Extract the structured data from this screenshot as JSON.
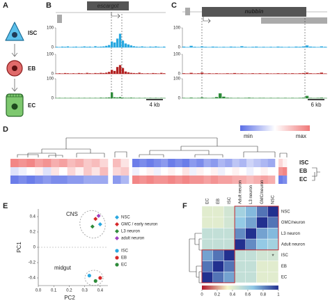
{
  "panel_labels": [
    "A",
    "B",
    "C",
    "D",
    "E",
    "F"
  ],
  "cells": [
    {
      "label": "ISC",
      "color": "#29a8e0"
    },
    {
      "label": "EB",
      "color": "#c0272d"
    },
    {
      "label": "EC",
      "color": "#2e8b3a"
    }
  ],
  "chart_data": [
    {
      "type": "bar",
      "title": "escargot",
      "scale_label": "4 kb",
      "ylim": [
        0,
        100
      ],
      "yticks": [
        0,
        100
      ],
      "series": [
        {
          "color": "#29a8e0",
          "values": [
            3,
            2,
            4,
            3,
            5,
            2,
            3,
            4,
            2,
            3,
            5,
            3,
            4,
            2,
            6,
            3,
            4,
            5,
            8,
            12,
            30,
            25,
            45,
            70,
            35,
            20,
            15,
            10,
            6,
            4,
            3,
            5,
            3,
            2,
            4,
            3,
            5,
            3,
            2,
            4
          ]
        },
        {
          "color": "#b22222",
          "values": [
            2,
            3,
            2,
            4,
            3,
            2,
            3,
            2,
            4,
            3,
            2,
            5,
            3,
            2,
            4,
            3,
            5,
            4,
            6,
            10,
            20,
            15,
            35,
            45,
            30,
            12,
            8,
            5,
            4,
            3,
            6,
            3,
            2,
            3,
            2,
            4,
            3,
            2,
            5,
            3
          ]
        },
        {
          "color": "#2e8b3a",
          "values": [
            1,
            2,
            1,
            2,
            1,
            2,
            1,
            1,
            2,
            1,
            2,
            1,
            2,
            1,
            2,
            1,
            3,
            2,
            3,
            4,
            30,
            5,
            4,
            6,
            3,
            2,
            2,
            3,
            2,
            1,
            2,
            1,
            2,
            1,
            2,
            1,
            2,
            1,
            2,
            1
          ]
        }
      ]
    },
    {
      "type": "bar",
      "title": "nubbin",
      "scale_label": "6 kb",
      "ylim": [
        0,
        100
      ],
      "yticks": [
        0,
        100
      ],
      "series": [
        {
          "color": "#29a8e0",
          "values": [
            4,
            2,
            8,
            3,
            2,
            5,
            3,
            2,
            4,
            3,
            2,
            3,
            2,
            4,
            3,
            2,
            6,
            3,
            2,
            3,
            4,
            2,
            3,
            2,
            3,
            2,
            4,
            3,
            2,
            3,
            2,
            4,
            3,
            5,
            10,
            4,
            3,
            2,
            5,
            3
          ]
        },
        {
          "color": "#b22222",
          "values": [
            3,
            2,
            5,
            2,
            3,
            6,
            2,
            3,
            2,
            3,
            2,
            2,
            3,
            2,
            4,
            2,
            3,
            2,
            2,
            3,
            2,
            3,
            2,
            3,
            2,
            2,
            3,
            2,
            3,
            2,
            3,
            2,
            3,
            4,
            6,
            3,
            2,
            3,
            6,
            2
          ]
        },
        {
          "color": "#2e8b3a",
          "values": [
            2,
            1,
            3,
            1,
            2,
            4,
            2,
            1,
            2,
            6,
            25,
            8,
            3,
            2,
            1,
            2,
            1,
            2,
            3,
            2,
            1,
            2,
            2,
            1,
            2,
            1,
            2,
            1,
            2,
            1,
            2,
            1,
            2,
            3,
            12,
            2,
            1,
            2,
            3,
            1
          ]
        }
      ]
    },
    {
      "type": "heatmap",
      "rows": [
        "ISC",
        "EB",
        "EC"
      ],
      "row_colors": [
        "#29a8e0",
        "#c0272d",
        "#2e8b3a"
      ],
      "clim": [
        -1,
        1
      ],
      "colormap": [
        "#5b6fe6",
        "#ffffff",
        "#f07878"
      ],
      "colorbar_labels": [
        "min",
        "max"
      ],
      "values": [
        [
          0.9,
          0.8,
          0.9,
          0.7,
          0.8,
          0.6,
          0.7,
          0.5,
          0.6,
          0.4,
          0.5,
          0.3,
          0.5,
          0.2,
          -0.9,
          -0.8,
          -0.9,
          -0.8,
          -0.7,
          -0.9,
          -0.8,
          -0.9,
          -0.7,
          -0.8,
          -0.6,
          -0.7,
          -0.5,
          -0.6,
          -0.4,
          -0.5,
          -0.3,
          -0.4,
          -0.5,
          -0.6,
          0.3,
          0.1
        ],
        [
          -0.2,
          -0.1,
          0,
          0.1,
          -0.2,
          0.2,
          0,
          0.3,
          0.1,
          0.4,
          0.2,
          0.5,
          0.3,
          0.4,
          -0.1,
          0,
          0.1,
          -0.1,
          0,
          0.1,
          0,
          0.2,
          -0.1,
          0.1,
          0,
          0.1,
          -0.1,
          0,
          0.1,
          0,
          -0.1,
          0,
          0.1,
          0,
          0.8,
          0.9
        ],
        [
          -0.9,
          -0.8,
          -0.9,
          -0.8,
          -0.7,
          -0.8,
          -0.8,
          -0.7,
          -0.7,
          -0.6,
          -0.6,
          -0.6,
          -0.7,
          -0.5,
          0.9,
          0.8,
          0.9,
          0.8,
          0.8,
          0.9,
          0.8,
          0.9,
          0.8,
          0.8,
          0.7,
          0.8,
          0.7,
          0.7,
          0.6,
          0.6,
          0.5,
          0.6,
          0.7,
          0.6,
          -0.9,
          -0.8
        ]
      ]
    },
    {
      "type": "scatter",
      "xlabel": "PC2",
      "ylabel": "PC1",
      "xlim": [
        0,
        0.45
      ],
      "ylim": [
        -0.5,
        0.5
      ],
      "xticks": [
        {
          "value": 0,
          "label": "0.0"
        },
        0.1,
        0.2,
        0.3,
        0.4
      ],
      "yticks": [
        0.4,
        0.2,
        0,
        -0.2,
        -0.4
      ],
      "annotations": [
        "CNS",
        "midgut"
      ],
      "series": [
        {
          "name": "NSC",
          "color": "#29a8e0",
          "marker": "diamond",
          "x": [
            0.4
          ],
          "y": [
            0.3
          ]
        },
        {
          "name": "GMC / early neuron",
          "color": "#d62728",
          "marker": "diamond",
          "x": [
            0.37
          ],
          "y": [
            0.37
          ]
        },
        {
          "name": "L3 neuron",
          "color": "#2e8b3a",
          "marker": "diamond",
          "x": [
            0.35
          ],
          "y": [
            0.27
          ]
        },
        {
          "name": "adult neuron",
          "color": "#a040c0",
          "marker": "diamond",
          "x": [
            0.39
          ],
          "y": [
            0.41
          ]
        },
        {
          "name": "ISC",
          "color": "#29a8e0",
          "marker": "circle",
          "x": [
            0.33
          ],
          "y": [
            -0.37
          ]
        },
        {
          "name": "EB",
          "color": "#d62728",
          "marker": "circle",
          "x": [
            0.4
          ],
          "y": [
            -0.4
          ]
        },
        {
          "name": "EC",
          "color": "#2e8b3a",
          "marker": "circle",
          "x": [
            0.37
          ],
          "y": [
            -0.44
          ]
        }
      ]
    },
    {
      "type": "heatmap",
      "columns": [
        "EC",
        "EB",
        "ISC",
        "Adult neuron",
        "L3 neuron",
        "GMC/neuron",
        "NSC"
      ],
      "rows": [
        "NSC",
        "GMC/neuron",
        "L3 neuron",
        "Adult neuron",
        "ISC",
        "EB",
        "EC"
      ],
      "clim": [
        0,
        1
      ],
      "cticks": [
        0,
        0.2,
        0.4,
        0.6,
        0.8,
        1
      ],
      "colormap": [
        "#b2182b",
        "#f5f5c8",
        "#8fc8e6",
        "#22308f"
      ],
      "annotation": "*",
      "values": [
        [
          0.4,
          0.4,
          0.45,
          0.6,
          0.7,
          0.85,
          1
        ],
        [
          0.4,
          0.4,
          0.45,
          0.65,
          0.75,
          1,
          0.85
        ],
        [
          0.5,
          0.5,
          0.5,
          0.8,
          1,
          0.75,
          0.7
        ],
        [
          0.5,
          0.5,
          0.5,
          1,
          0.8,
          0.65,
          0.6
        ],
        [
          0.75,
          0.85,
          1,
          0.5,
          0.5,
          0.45,
          0.45
        ],
        [
          0.85,
          1,
          0.85,
          0.5,
          0.5,
          0.4,
          0.4
        ],
        [
          1,
          0.85,
          0.75,
          0.5,
          0.5,
          0.4,
          0.4
        ]
      ]
    }
  ]
}
